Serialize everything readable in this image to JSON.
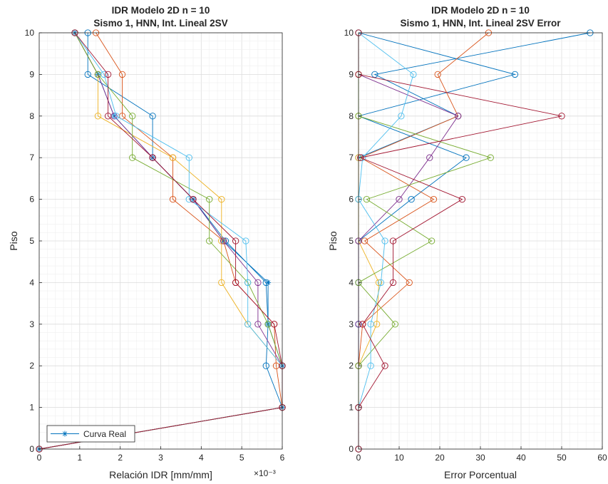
{
  "chart_data": [
    {
      "type": "line",
      "title": "IDR Modelo 2D n = 10",
      "subtitle": "Sismo 1, HNN, Int. Lineal 2SV",
      "xlabel": "Relación IDR [mm/mm]",
      "ylabel": "Piso",
      "x_exponent": "×10⁻³",
      "xlim": [
        0,
        6
      ],
      "ylim": [
        0,
        10
      ],
      "x_ticks": [
        "0",
        "1",
        "2",
        "3",
        "4",
        "5",
        "6"
      ],
      "y_ticks": [
        "0",
        "1",
        "2",
        "3",
        "4",
        "5",
        "6",
        "7",
        "8",
        "9",
        "10"
      ],
      "grid": true,
      "minor_grid": true,
      "legend": {
        "position": "bottom-left",
        "entries": [
          "Curva Real"
        ]
      },
      "series": [
        {
          "name": "Curva Real",
          "marker": "asterisk",
          "color": "#0072BD",
          "x": [
            0,
            6.0,
            6.0,
            5.65,
            5.65,
            4.55,
            3.8,
            2.8,
            1.85,
            1.45,
            0.88
          ],
          "y": [
            0,
            1,
            2,
            3,
            4,
            5,
            6,
            7,
            8,
            9,
            10
          ]
        },
        {
          "marker": "circle",
          "color": "#0072BD",
          "x": [
            0,
            6.0,
            5.6,
            5.65,
            5.6,
            4.6,
            3.8,
            2.8,
            2.8,
            1.2,
            1.2
          ],
          "y": [
            0,
            1,
            2,
            3,
            4,
            5,
            6,
            7,
            8,
            9,
            10
          ]
        },
        {
          "marker": "circle",
          "color": "#D95319",
          "x": [
            0,
            6.0,
            5.85,
            5.8,
            4.85,
            4.55,
            3.3,
            3.3,
            2.05,
            2.05,
            1.4
          ],
          "y": [
            0,
            1,
            2,
            3,
            4,
            5,
            6,
            7,
            8,
            9,
            10
          ]
        },
        {
          "marker": "circle",
          "color": "#EDB120",
          "x": [
            0,
            6.0,
            6.0,
            5.15,
            4.5,
            4.5,
            4.5,
            3.3,
            1.45,
            1.45,
            0.88
          ],
          "y": [
            0,
            1,
            2,
            3,
            4,
            5,
            6,
            7,
            8,
            9,
            10
          ]
        },
        {
          "marker": "circle",
          "color": "#7E2F8E",
          "x": [
            0,
            6.0,
            6.0,
            5.4,
            5.4,
            4.55,
            3.8,
            2.8,
            1.85,
            1.45,
            0.88
          ],
          "y": [
            0,
            1,
            2,
            3,
            4,
            5,
            6,
            7,
            8,
            9,
            10
          ]
        },
        {
          "marker": "circle",
          "color": "#77AC30",
          "x": [
            0,
            6.0,
            6.0,
            5.65,
            5.15,
            4.2,
            4.2,
            2.3,
            2.3,
            1.45,
            0.88
          ],
          "y": [
            0,
            1,
            2,
            3,
            4,
            5,
            6,
            7,
            8,
            9,
            10
          ]
        },
        {
          "marker": "circle",
          "color": "#4DBEEE",
          "x": [
            0,
            6.0,
            6.0,
            5.15,
            5.15,
            5.1,
            3.7,
            3.7,
            1.9,
            1.6,
            0.88
          ],
          "y": [
            0,
            1,
            2,
            3,
            4,
            5,
            6,
            7,
            8,
            9,
            10
          ]
        },
        {
          "marker": "circle",
          "color": "#A2142F",
          "x": [
            0,
            6.0,
            6.0,
            5.8,
            4.85,
            4.85,
            3.8,
            2.8,
            1.7,
            1.7,
            0.88
          ],
          "y": [
            0,
            1,
            2,
            3,
            4,
            5,
            6,
            7,
            8,
            9,
            10
          ]
        }
      ]
    },
    {
      "type": "line",
      "title": "IDR Modelo 2D n = 10",
      "subtitle": "Sismo 1, HNN, Int. Lineal 2SV Error",
      "xlabel": "Error Porcentual",
      "ylabel": "Piso",
      "xlim": [
        0,
        60
      ],
      "ylim": [
        0,
        10
      ],
      "x_ticks": [
        "0",
        "10",
        "20",
        "30",
        "40",
        "50",
        "60"
      ],
      "y_ticks": [
        "0",
        "1",
        "2",
        "3",
        "4",
        "5",
        "6",
        "7",
        "8",
        "9",
        "10"
      ],
      "grid": true,
      "minor_grid": true,
      "series": [
        {
          "marker": "circle",
          "color": "#0072BD",
          "x": [
            0,
            0,
            0,
            0,
            0,
            0,
            13,
            26.5,
            0,
            38.5,
            0
          ],
          "y": [
            0,
            1,
            2,
            3,
            4,
            5,
            6,
            7,
            8,
            9,
            10
          ]
        },
        {
          "marker": "circle",
          "color": "#0072BD",
          "x": [
            0,
            0,
            0,
            0,
            0,
            0,
            0,
            0,
            24.5,
            4.0,
            57
          ],
          "y": [
            0,
            1,
            2,
            3,
            4,
            5,
            6,
            7,
            8,
            9,
            10
          ]
        },
        {
          "marker": "circle",
          "color": "#D95319",
          "x": [
            0,
            0,
            0,
            1.0,
            12.5,
            1.5,
            18.5,
            0.5,
            24.5,
            19.5,
            32
          ],
          "y": [
            0,
            1,
            2,
            3,
            4,
            5,
            6,
            7,
            8,
            9,
            10
          ]
        },
        {
          "marker": "circle",
          "color": "#EDB120",
          "x": [
            0,
            0,
            0,
            4.5,
            5.0,
            0,
            0,
            0,
            0,
            0,
            0
          ],
          "y": [
            0,
            1,
            2,
            3,
            4,
            5,
            6,
            7,
            8,
            9,
            10
          ]
        },
        {
          "marker": "circle",
          "color": "#7E2F8E",
          "x": [
            0,
            0,
            0,
            0,
            0,
            0,
            10.0,
            17.5,
            24.5,
            0,
            0
          ],
          "y": [
            0,
            1,
            2,
            3,
            4,
            5,
            6,
            7,
            8,
            9,
            10
          ]
        },
        {
          "marker": "circle",
          "color": "#77AC30",
          "x": [
            0,
            0,
            0,
            9.0,
            0,
            18.0,
            2.0,
            32.5,
            0,
            0,
            0
          ],
          "y": [
            0,
            1,
            2,
            3,
            4,
            5,
            6,
            7,
            8,
            9,
            10
          ]
        },
        {
          "marker": "circle",
          "color": "#4DBEEE",
          "x": [
            0,
            0,
            3.0,
            3.0,
            5.5,
            6.5,
            0,
            1.0,
            10.5,
            13.5,
            0
          ],
          "y": [
            0,
            1,
            2,
            3,
            4,
            5,
            6,
            7,
            8,
            9,
            10
          ]
        },
        {
          "marker": "circle",
          "color": "#A2142F",
          "x": [
            0,
            0,
            6.5,
            1.0,
            8.5,
            8.5,
            25.5,
            0.5,
            50,
            0,
            0
          ],
          "y": [
            0,
            1,
            2,
            3,
            4,
            5,
            6,
            7,
            8,
            9,
            10
          ]
        }
      ]
    }
  ]
}
